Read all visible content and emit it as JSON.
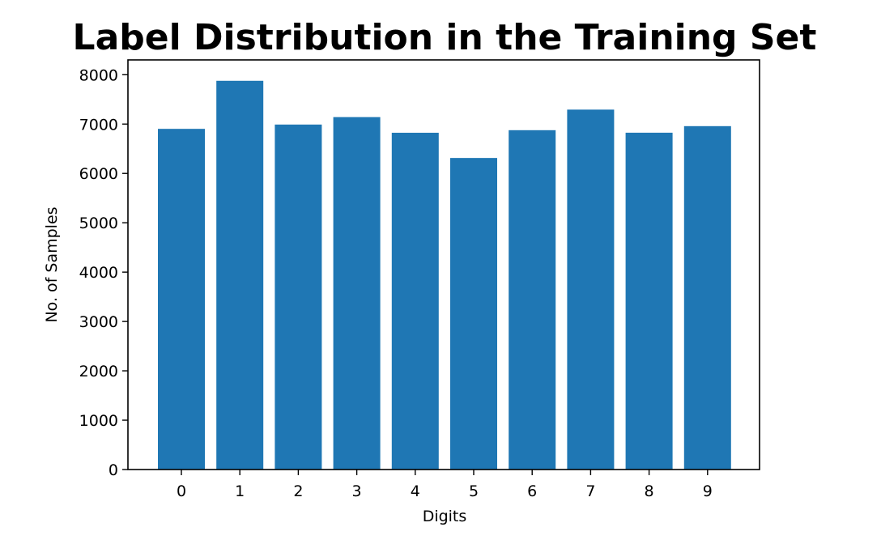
{
  "chart_data": {
    "type": "bar",
    "title": "Label Distribution in the Training Set",
    "xlabel": "Digits",
    "ylabel": "No. of Samples",
    "categories": [
      "0",
      "1",
      "2",
      "3",
      "4",
      "5",
      "6",
      "7",
      "8",
      "9"
    ],
    "values": [
      6903,
      7877,
      6990,
      7141,
      6824,
      6313,
      6876,
      7293,
      6825,
      6958
    ],
    "ylim": [
      0,
      8300
    ],
    "yticks": [
      "0",
      "1000",
      "2000",
      "3000",
      "4000",
      "5000",
      "6000",
      "7000",
      "8000"
    ],
    "bar_color": "#1f77b4",
    "grid": false,
    "legend": "none"
  }
}
